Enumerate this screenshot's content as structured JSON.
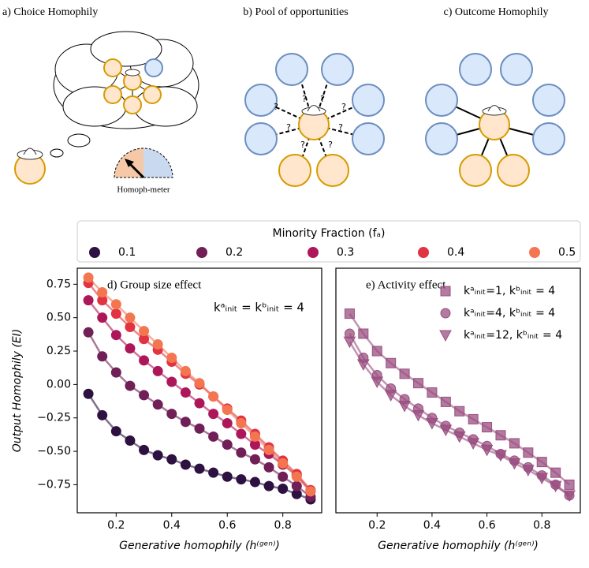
{
  "diagrams": [
    {
      "title": "a) Choice Homophily",
      "meter_label": "Homoph-meter"
    },
    {
      "title": "b) Pool of opportunities",
      "labels": [
        "?",
        "?",
        "?",
        "?",
        "?",
        "?",
        "?",
        "?"
      ]
    },
    {
      "title": "c) Outcome Homophily"
    }
  ],
  "chart_data": [
    {
      "type": "line",
      "title": "d) Group size effect",
      "annotation": "kᵃᵢₙᵢₜ = kᵇᵢₙᵢₜ = 4",
      "x_label": "Generative homophily (h⁽ᵍᵉⁿ⁾)",
      "y_label": "Output Homophily (EI)",
      "legend_title": "Minority Fraction (fₐ)",
      "marker": "circle",
      "x": [
        0.1,
        0.15,
        0.2,
        0.25,
        0.3,
        0.35,
        0.4,
        0.45,
        0.5,
        0.55,
        0.6,
        0.65,
        0.7,
        0.75,
        0.8,
        0.85,
        0.9
      ],
      "series": [
        {
          "name": "0.1",
          "color": "#2d1140",
          "values": [
            -0.07,
            -0.23,
            -0.35,
            -0.42,
            -0.49,
            -0.53,
            -0.56,
            -0.6,
            -0.63,
            -0.66,
            -0.69,
            -0.71,
            -0.73,
            -0.76,
            -0.78,
            -0.82,
            -0.86
          ]
        },
        {
          "name": "0.2",
          "color": "#701f57",
          "values": [
            0.39,
            0.21,
            0.09,
            -0.01,
            -0.08,
            -0.15,
            -0.22,
            -0.28,
            -0.33,
            -0.39,
            -0.45,
            -0.51,
            -0.56,
            -0.62,
            -0.69,
            -0.76,
            -0.84
          ]
        },
        {
          "name": "0.3",
          "color": "#ad1759",
          "values": [
            0.63,
            0.5,
            0.37,
            0.27,
            0.18,
            0.1,
            0.02,
            -0.06,
            -0.14,
            -0.22,
            -0.29,
            -0.37,
            -0.45,
            -0.52,
            -0.6,
            -0.68,
            -0.8
          ]
        },
        {
          "name": "0.4",
          "color": "#e13342",
          "values": [
            0.76,
            0.63,
            0.53,
            0.43,
            0.34,
            0.26,
            0.17,
            0.08,
            0.0,
            -0.09,
            -0.18,
            -0.27,
            -0.37,
            -0.47,
            -0.57,
            -0.67,
            -0.79
          ]
        },
        {
          "name": "0.5",
          "color": "#f37651",
          "values": [
            0.8,
            0.69,
            0.6,
            0.5,
            0.4,
            0.3,
            0.2,
            0.1,
            0.01,
            -0.09,
            -0.19,
            -0.29,
            -0.39,
            -0.49,
            -0.59,
            -0.69,
            -0.8
          ]
        }
      ],
      "xlim": [
        0.06,
        0.94
      ],
      "ylim": [
        -0.96,
        0.87
      ],
      "xticks": [
        0.2,
        0.4,
        0.6,
        0.8
      ],
      "yticks": [
        0.75,
        {
          "value": 0.5,
          "label": "0.50"
        },
        0.25,
        {
          "value": 0,
          "label": "0.00"
        },
        {
          "value": -0.25,
          "label": "−0.25"
        },
        {
          "value": -0.5,
          "label": "−0.50"
        },
        {
          "value": -0.75,
          "label": "−0.75"
        }
      ]
    },
    {
      "type": "line",
      "title": "e) Activity effect",
      "x_label": "Generative homophily (h⁽ᵍᵉⁿ⁾)",
      "x": [
        0.1,
        0.15,
        0.2,
        0.25,
        0.3,
        0.35,
        0.4,
        0.45,
        0.5,
        0.55,
        0.6,
        0.65,
        0.7,
        0.75,
        0.8,
        0.85,
        0.9
      ],
      "series": [
        {
          "name": "kᵃᵢₙᵢₜ=1, kᵇᵢₙᵢₜ = 4",
          "marker": "square",
          "color": "#9a4f80",
          "values": [
            0.53,
            0.38,
            0.25,
            0.16,
            0.08,
            0.01,
            -0.06,
            -0.13,
            -0.2,
            -0.26,
            -0.32,
            -0.38,
            -0.44,
            -0.51,
            -0.58,
            -0.66,
            -0.75
          ]
        },
        {
          "name": "kᵃᵢₙᵢₜ=4, kᵇᵢₙᵢₜ = 4",
          "marker": "circle",
          "color": "#9a4f80",
          "values": [
            0.38,
            0.2,
            0.07,
            -0.03,
            -0.11,
            -0.18,
            -0.25,
            -0.31,
            -0.36,
            -0.41,
            -0.46,
            -0.52,
            -0.57,
            -0.62,
            -0.68,
            -0.75,
            -0.83
          ]
        },
        {
          "name": "kᵃᵢₙᵢₜ=12, kᵇᵢₙᵢₜ = 4",
          "marker": "triangle",
          "color": "#9a4f80",
          "values": [
            0.32,
            0.15,
            0.02,
            -0.08,
            -0.16,
            -0.23,
            -0.29,
            -0.34,
            -0.39,
            -0.44,
            -0.49,
            -0.53,
            -0.59,
            -0.64,
            -0.7,
            -0.76,
            -0.83
          ]
        }
      ],
      "xlim": [
        0.05,
        0.94
      ],
      "ylim": [
        -0.96,
        0.87
      ],
      "xticks": [
        0.2,
        0.4,
        0.6,
        0.8
      ]
    }
  ]
}
